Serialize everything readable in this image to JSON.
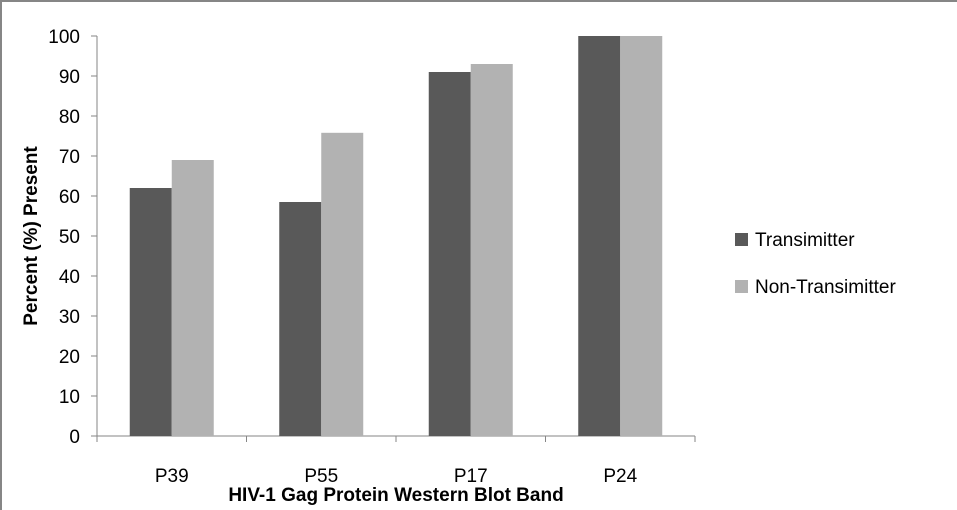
{
  "chart_data": {
    "type": "bar",
    "title": "",
    "xlabel": "HIV-1 Gag Protein Western Blot Band",
    "ylabel": "Percent (%) Present",
    "categories": [
      "P39",
      "P55",
      "P17",
      "P24"
    ],
    "series": [
      {
        "name": "Transimitter",
        "values": [
          62,
          58.5,
          91,
          100
        ],
        "color": "#595959"
      },
      {
        "name": "Non-Transimitter",
        "values": [
          69,
          75.8,
          93,
          100
        ],
        "color": "#b2b2b2"
      }
    ],
    "ylim": [
      0,
      100
    ],
    "yticks": [
      0,
      10,
      20,
      30,
      40,
      50,
      60,
      70,
      80,
      90,
      100
    ],
    "grid": false,
    "legend_position": "right"
  }
}
